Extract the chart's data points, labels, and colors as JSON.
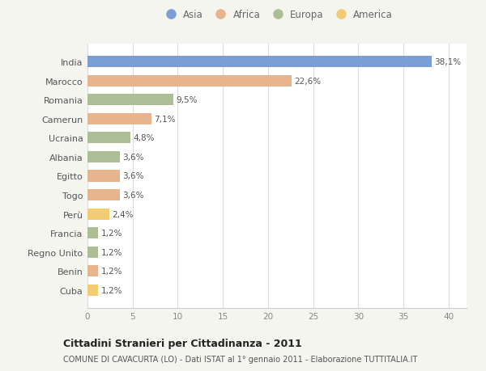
{
  "categories": [
    "India",
    "Marocco",
    "Romania",
    "Camerun",
    "Ucraina",
    "Albania",
    "Egitto",
    "Togo",
    "Perù",
    "Francia",
    "Regno Unito",
    "Benin",
    "Cuba"
  ],
  "values": [
    38.1,
    22.6,
    9.5,
    7.1,
    4.8,
    3.6,
    3.6,
    3.6,
    2.4,
    1.2,
    1.2,
    1.2,
    1.2
  ],
  "labels": [
    "38,1%",
    "22,6%",
    "9,5%",
    "7,1%",
    "4,8%",
    "3,6%",
    "3,6%",
    "3,6%",
    "2,4%",
    "1,2%",
    "1,2%",
    "1,2%",
    "1,2%"
  ],
  "continents": [
    "Asia",
    "Africa",
    "Europa",
    "Africa",
    "Europa",
    "Europa",
    "Africa",
    "Africa",
    "America",
    "Europa",
    "Europa",
    "Africa",
    "America"
  ],
  "colors": {
    "Asia": "#7b9fd4",
    "Africa": "#e8b48e",
    "Europa": "#abbe96",
    "America": "#f2cc72"
  },
  "legend_order": [
    "Asia",
    "Africa",
    "Europa",
    "America"
  ],
  "xlim": [
    0,
    42
  ],
  "xticks": [
    0,
    5,
    10,
    15,
    20,
    25,
    30,
    35,
    40
  ],
  "title": "Cittadini Stranieri per Cittadinanza - 2011",
  "subtitle": "COMUNE DI CAVACURTA (LO) - Dati ISTAT al 1° gennaio 2011 - Elaborazione TUTTITALIA.IT",
  "plot_bg": "#ffffff",
  "fig_bg": "#f5f5f0",
  "bar_height": 0.6
}
